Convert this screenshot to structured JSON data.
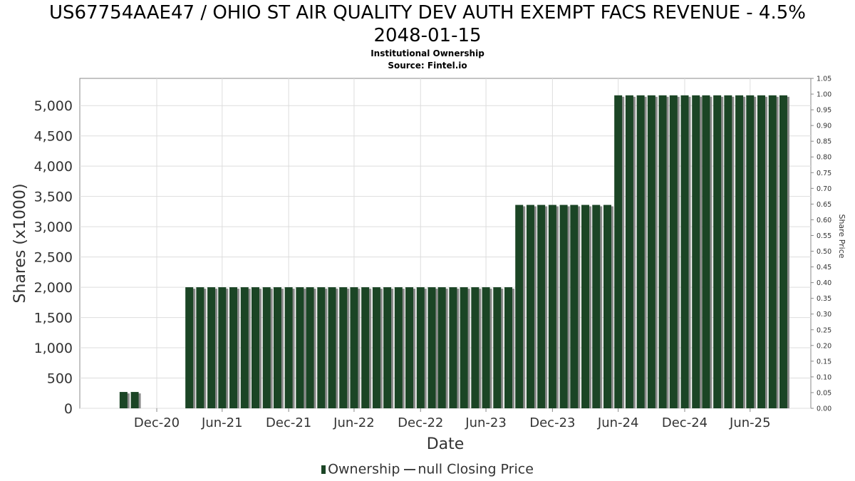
{
  "title_line1": "US67754AAE47 / OHIO ST AIR QUALITY DEV AUTH EXEMPT FACS REVENUE - 4.5%",
  "title_line2": "2048-01-15",
  "subtitle1": "Institutional Ownership",
  "subtitle2": "Source: Fintel.io",
  "legend": {
    "ownership": "Ownership",
    "price": "null Closing Price"
  },
  "colors": {
    "bar": "#1b4525",
    "bar_shadow": "#8a8a8a",
    "grid": "#dddddd"
  },
  "chart_data": {
    "type": "bar",
    "xlabel": "Date",
    "ylabel": "Shares (x1000)",
    "y2label": "Share Price",
    "ylim": [
      0,
      5450
    ],
    "y2lim": [
      0,
      1.05
    ],
    "yticks": [
      0,
      500,
      1000,
      1500,
      2000,
      2500,
      3000,
      3500,
      4000,
      4500,
      5000
    ],
    "ytick_labels": [
      "0",
      "500",
      "1,000",
      "1,500",
      "2,000",
      "2,500",
      "3,000",
      "3,500",
      "4,000",
      "4,500",
      "5,000"
    ],
    "y2ticks": [
      "0.00",
      "0.05",
      "0.10",
      "0.15",
      "0.20",
      "0.25",
      "0.30",
      "0.35",
      "0.40",
      "0.45",
      "0.50",
      "0.55",
      "0.60",
      "0.65",
      "0.70",
      "0.75",
      "0.80",
      "0.85",
      "0.90",
      "0.95",
      "1.00",
      "1.05"
    ],
    "xlim": [
      "2020-06-01",
      "2025-12-15"
    ],
    "xticks": [
      {
        "date": "2020-12-31",
        "label": "Dec-20"
      },
      {
        "date": "2021-06-30",
        "label": "Jun-21"
      },
      {
        "date": "2021-12-31",
        "label": "Dec-21"
      },
      {
        "date": "2022-06-30",
        "label": "Jun-22"
      },
      {
        "date": "2022-12-31",
        "label": "Dec-22"
      },
      {
        "date": "2023-06-30",
        "label": "Jun-23"
      },
      {
        "date": "2023-12-31",
        "label": "Dec-23"
      },
      {
        "date": "2024-06-30",
        "label": "Jun-24"
      },
      {
        "date": "2024-12-31",
        "label": "Dec-24"
      },
      {
        "date": "2025-06-30",
        "label": "Jun-25"
      }
    ],
    "grid": true,
    "legend_position": "bottom-center",
    "series": [
      {
        "name": "Ownership",
        "points": [
          {
            "date": "2020-09-30",
            "value": 270
          },
          {
            "date": "2020-10-31",
            "value": 270
          },
          {
            "date": "2021-03-31",
            "value": 2000
          },
          {
            "date": "2021-04-30",
            "value": 2000
          },
          {
            "date": "2021-05-31",
            "value": 2000
          },
          {
            "date": "2021-06-30",
            "value": 2000
          },
          {
            "date": "2021-07-31",
            "value": 2000
          },
          {
            "date": "2021-08-31",
            "value": 2000
          },
          {
            "date": "2021-09-30",
            "value": 2000
          },
          {
            "date": "2021-10-31",
            "value": 2000
          },
          {
            "date": "2021-11-30",
            "value": 2000
          },
          {
            "date": "2021-12-31",
            "value": 2000
          },
          {
            "date": "2022-01-31",
            "value": 2000
          },
          {
            "date": "2022-02-28",
            "value": 2000
          },
          {
            "date": "2022-03-31",
            "value": 2000
          },
          {
            "date": "2022-04-30",
            "value": 2000
          },
          {
            "date": "2022-05-31",
            "value": 2000
          },
          {
            "date": "2022-06-30",
            "value": 2000
          },
          {
            "date": "2022-07-31",
            "value": 2000
          },
          {
            "date": "2022-08-31",
            "value": 2000
          },
          {
            "date": "2022-09-30",
            "value": 2000
          },
          {
            "date": "2022-10-31",
            "value": 2000
          },
          {
            "date": "2022-11-30",
            "value": 2000
          },
          {
            "date": "2022-12-31",
            "value": 2000
          },
          {
            "date": "2023-01-31",
            "value": 2000
          },
          {
            "date": "2023-02-28",
            "value": 2000
          },
          {
            "date": "2023-03-31",
            "value": 2000
          },
          {
            "date": "2023-04-30",
            "value": 2000
          },
          {
            "date": "2023-05-31",
            "value": 2000
          },
          {
            "date": "2023-06-30",
            "value": 2000
          },
          {
            "date": "2023-07-31",
            "value": 2000
          },
          {
            "date": "2023-08-31",
            "value": 2000
          },
          {
            "date": "2023-09-30",
            "value": 3360
          },
          {
            "date": "2023-10-31",
            "value": 3360
          },
          {
            "date": "2023-11-30",
            "value": 3360
          },
          {
            "date": "2023-12-31",
            "value": 3360
          },
          {
            "date": "2024-01-31",
            "value": 3360
          },
          {
            "date": "2024-02-29",
            "value": 3360
          },
          {
            "date": "2024-03-31",
            "value": 3360
          },
          {
            "date": "2024-04-30",
            "value": 3360
          },
          {
            "date": "2024-05-31",
            "value": 3360
          },
          {
            "date": "2024-06-30",
            "value": 5170
          },
          {
            "date": "2024-07-31",
            "value": 5170
          },
          {
            "date": "2024-08-31",
            "value": 5170
          },
          {
            "date": "2024-09-30",
            "value": 5170
          },
          {
            "date": "2024-10-31",
            "value": 5170
          },
          {
            "date": "2024-11-30",
            "value": 5170
          },
          {
            "date": "2024-12-31",
            "value": 5170
          },
          {
            "date": "2025-01-31",
            "value": 5170
          },
          {
            "date": "2025-02-28",
            "value": 5170
          },
          {
            "date": "2025-03-31",
            "value": 5170
          },
          {
            "date": "2025-04-30",
            "value": 5170
          },
          {
            "date": "2025-05-31",
            "value": 5170
          },
          {
            "date": "2025-06-30",
            "value": 5170
          },
          {
            "date": "2025-07-31",
            "value": 5170
          },
          {
            "date": "2025-08-31",
            "value": 5170
          },
          {
            "date": "2025-09-30",
            "value": 5170
          }
        ]
      }
    ]
  }
}
